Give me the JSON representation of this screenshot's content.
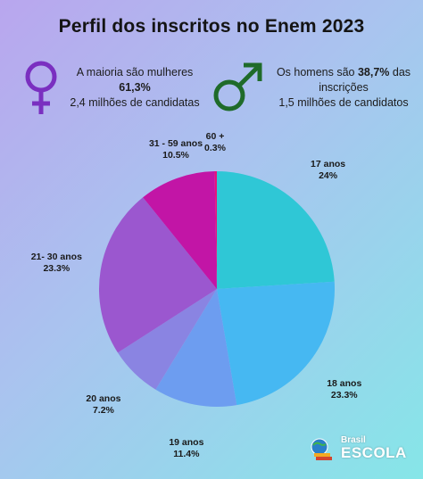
{
  "title": "Perfil dos inscritos no Enem 2023",
  "female_info": {
    "line1": "A maioria são mulheres",
    "line2": "61,3%",
    "line3": "2,4 milhões de candidatas",
    "icon": "female-symbol-icon",
    "color": "#7a2fc0"
  },
  "male_info": {
    "line1_pre": "Os homens são ",
    "line1_bold": "38,7%",
    "line1_post": " das",
    "line2": "inscrições",
    "line3": "1,5 milhões de candidatos",
    "icon": "male-symbol-icon",
    "color": "#1f6b2a"
  },
  "chart_data": {
    "type": "pie",
    "start_angle_deg": 0,
    "direction": "clockwise",
    "slices": [
      {
        "category": "17 anos",
        "value_label": "24%",
        "value": 24,
        "color": "#2fc7d6"
      },
      {
        "category": "18 anos",
        "value_label": "23.3%",
        "value": 23.3,
        "color": "#46b8f2"
      },
      {
        "category": "19 anos",
        "value_label": "11.4%",
        "value": 11.4,
        "color": "#6d9df0"
      },
      {
        "category": "20 anos",
        "value_label": "7.2%",
        "value": 7.2,
        "color": "#8a84e2"
      },
      {
        "category": "21- 30 anos",
        "value_label": "23.3%",
        "value": 23.3,
        "color": "#9b57cf"
      },
      {
        "category": "31 - 59 anos",
        "value_label": "10.5%",
        "value": 10.5,
        "color": "#c215a6"
      },
      {
        "category": "60 +",
        "value_label": "0.3%",
        "value": 0.3,
        "color": "#e6127e"
      }
    ]
  },
  "brand": {
    "small": "Brasil",
    "big": "ESCOLA",
    "icon": "globe-books-icon"
  }
}
